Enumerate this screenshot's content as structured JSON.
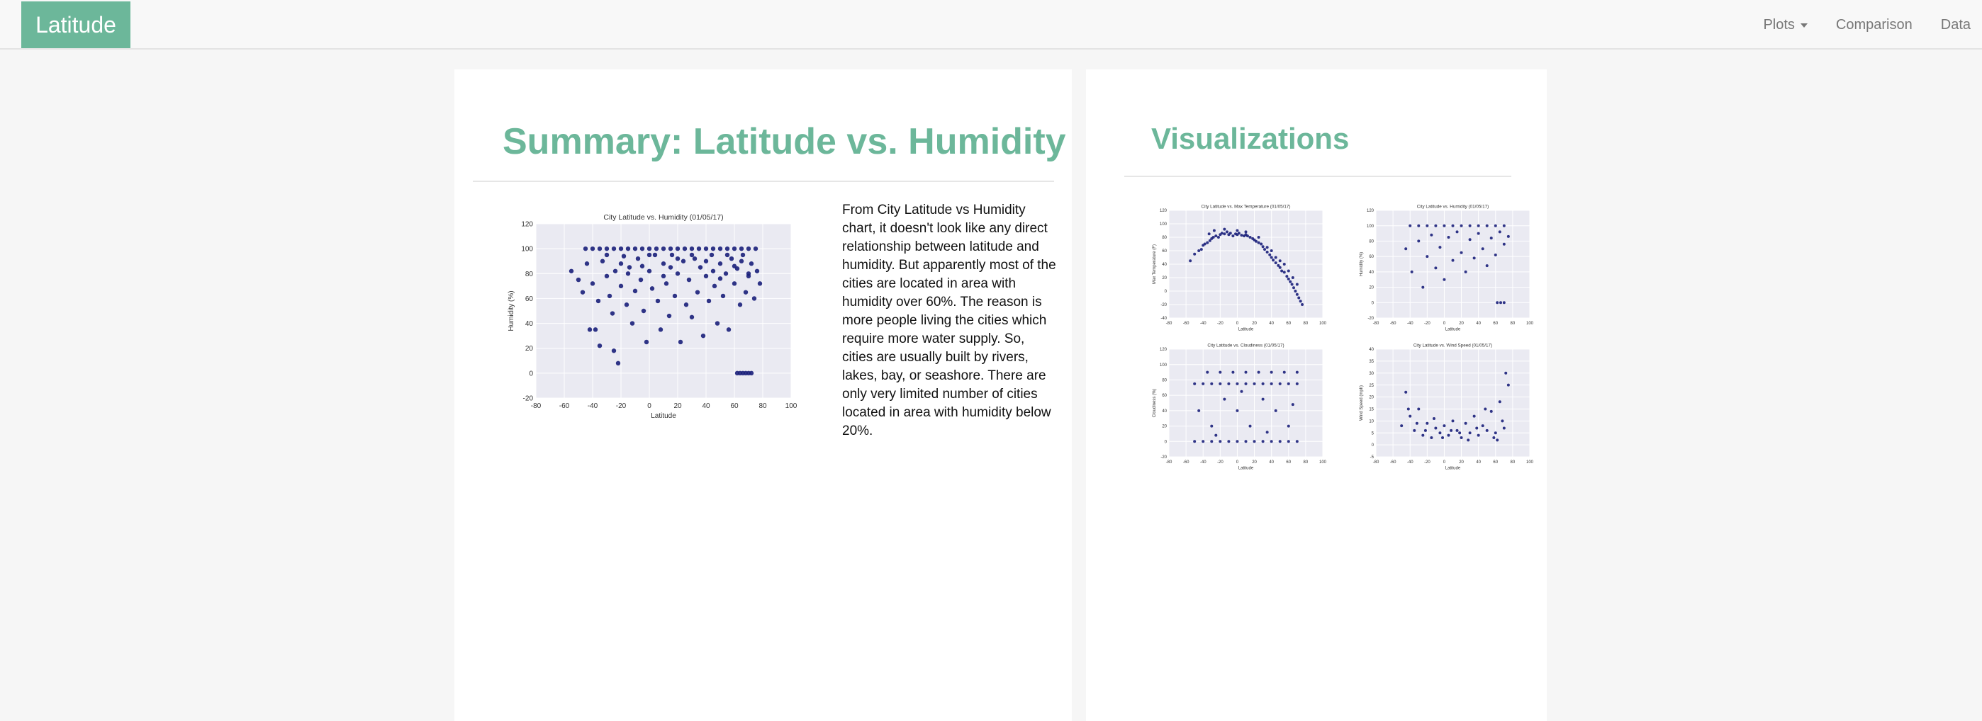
{
  "navbar": {
    "brand": "Latitude",
    "links": [
      {
        "label": "Plots",
        "has_caret": true
      },
      {
        "label": "Comparison",
        "has_caret": false
      },
      {
        "label": "Data",
        "has_caret": false
      }
    ]
  },
  "summary": {
    "title": "Summary: Latitude vs. Humidity",
    "text": "From City Latitude vs Humidity chart, it doesn't look like any direct relationship between latitude and humidity. But apparently most of the cities are located in area with humidity over 60%. The reason is more people living the cities which require more water supply. So, cities are usually built by rivers, lakes, bay, or seashore. There are only very limited number of cities located in area with humidity below 20%."
  },
  "visualizations": {
    "title": "Visualizations"
  },
  "colors": {
    "accent": "#6cb79a",
    "plot_bg": "#eaeaf2",
    "marker": "#1a1f7a"
  },
  "chart_data": [
    {
      "id": "main-humidity",
      "type": "scatter",
      "title": "City Latitude vs. Humidity (01/05/17)",
      "xlabel": "Latitude",
      "ylabel": "Humidity (%)",
      "xlim": [
        -80,
        100
      ],
      "ylim": [
        -20,
        120
      ],
      "xticks": [
        -80,
        -60,
        -40,
        -20,
        0,
        20,
        40,
        60,
        80,
        100
      ],
      "yticks": [
        -20,
        0,
        20,
        40,
        60,
        80,
        100,
        120
      ],
      "grid": true,
      "points": [
        [
          -45,
          100
        ],
        [
          -40,
          100
        ],
        [
          -35,
          100
        ],
        [
          -30,
          100
        ],
        [
          -25,
          100
        ],
        [
          -20,
          100
        ],
        [
          -15,
          100
        ],
        [
          -10,
          100
        ],
        [
          -5,
          100
        ],
        [
          0,
          100
        ],
        [
          5,
          100
        ],
        [
          10,
          100
        ],
        [
          15,
          100
        ],
        [
          20,
          100
        ],
        [
          25,
          100
        ],
        [
          30,
          100
        ],
        [
          35,
          100
        ],
        [
          40,
          100
        ],
        [
          45,
          100
        ],
        [
          50,
          100
        ],
        [
          55,
          100
        ],
        [
          60,
          100
        ],
        [
          65,
          100
        ],
        [
          70,
          100
        ],
        [
          75,
          100
        ],
        [
          -55,
          82
        ],
        [
          -50,
          75
        ],
        [
          -47,
          65
        ],
        [
          -44,
          88
        ],
        [
          -42,
          35
        ],
        [
          -40,
          72
        ],
        [
          -38,
          35
        ],
        [
          -36,
          58
        ],
        [
          -35,
          22
        ],
        [
          -33,
          90
        ],
        [
          -30,
          78
        ],
        [
          -28,
          62
        ],
        [
          -26,
          48
        ],
        [
          -25,
          18
        ],
        [
          -24,
          82
        ],
        [
          -22,
          8
        ],
        [
          -20,
          70
        ],
        [
          -18,
          94
        ],
        [
          -16,
          55
        ],
        [
          -14,
          85
        ],
        [
          -12,
          40
        ],
        [
          -10,
          66
        ],
        [
          -8,
          92
        ],
        [
          -6,
          75
        ],
        [
          -4,
          50
        ],
        [
          -2,
          25
        ],
        [
          0,
          82
        ],
        [
          2,
          68
        ],
        [
          4,
          95
        ],
        [
          6,
          58
        ],
        [
          8,
          35
        ],
        [
          10,
          88
        ],
        [
          12,
          72
        ],
        [
          14,
          46
        ],
        [
          16,
          95
        ],
        [
          18,
          62
        ],
        [
          20,
          80
        ],
        [
          22,
          25
        ],
        [
          24,
          90
        ],
        [
          26,
          55
        ],
        [
          28,
          75
        ],
        [
          30,
          45
        ],
        [
          32,
          92
        ],
        [
          34,
          65
        ],
        [
          36,
          85
        ],
        [
          38,
          30
        ],
        [
          40,
          78
        ],
        [
          42,
          58
        ],
        [
          44,
          95
        ],
        [
          46,
          70
        ],
        [
          48,
          40
        ],
        [
          50,
          88
        ],
        [
          52,
          62
        ],
        [
          54,
          80
        ],
        [
          56,
          35
        ],
        [
          58,
          92
        ],
        [
          60,
          72
        ],
        [
          62,
          84
        ],
        [
          64,
          55
        ],
        [
          66,
          95
        ],
        [
          68,
          65
        ],
        [
          70,
          78
        ],
        [
          72,
          88
        ],
        [
          74,
          60
        ],
        [
          76,
          82
        ],
        [
          78,
          72
        ],
        [
          -30,
          95
        ],
        [
          -15,
          80
        ],
        [
          0,
          95
        ],
        [
          15,
          85
        ],
        [
          30,
          95
        ],
        [
          45,
          82
        ],
        [
          55,
          95
        ],
        [
          65,
          90
        ],
        [
          70,
          80
        ],
        [
          60,
          86
        ],
        [
          50,
          76
        ],
        [
          40,
          90
        ],
        [
          20,
          92
        ],
        [
          10,
          78
        ],
        [
          -5,
          86
        ],
        [
          -20,
          88
        ],
        [
          62,
          0
        ],
        [
          64,
          0
        ],
        [
          66,
          0
        ],
        [
          68,
          0
        ],
        [
          70,
          0
        ],
        [
          72,
          0
        ]
      ]
    },
    {
      "id": "viz-temperature",
      "type": "scatter",
      "title": "City Latitude vs. Max Temperature (01/05/17)",
      "xlabel": "Latitude",
      "ylabel": "Max Temperature (F)",
      "xlim": [
        -80,
        100
      ],
      "ylim": [
        -40,
        120
      ],
      "xticks": [
        -80,
        -60,
        -40,
        -20,
        0,
        20,
        40,
        60,
        80,
        100
      ],
      "yticks": [
        -40,
        -20,
        0,
        20,
        40,
        60,
        80,
        100,
        120
      ],
      "grid": true,
      "points": [
        [
          -55,
          45
        ],
        [
          -50,
          55
        ],
        [
          -45,
          60
        ],
        [
          -42,
          62
        ],
        [
          -40,
          68
        ],
        [
          -38,
          70
        ],
        [
          -35,
          72
        ],
        [
          -32,
          75
        ],
        [
          -30,
          78
        ],
        [
          -28,
          80
        ],
        [
          -25,
          82
        ],
        [
          -22,
          80
        ],
        [
          -20,
          84
        ],
        [
          -18,
          86
        ],
        [
          -15,
          85
        ],
        [
          -12,
          88
        ],
        [
          -10,
          84
        ],
        [
          -8,
          86
        ],
        [
          -5,
          82
        ],
        [
          -2,
          85
        ],
        [
          0,
          84
        ],
        [
          2,
          86
        ],
        [
          5,
          83
        ],
        [
          8,
          82
        ],
        [
          10,
          84
        ],
        [
          12,
          82
        ],
        [
          15,
          80
        ],
        [
          18,
          78
        ],
        [
          20,
          76
        ],
        [
          22,
          74
        ],
        [
          25,
          72
        ],
        [
          28,
          70
        ],
        [
          30,
          66
        ],
        [
          32,
          62
        ],
        [
          35,
          58
        ],
        [
          38,
          54
        ],
        [
          40,
          50
        ],
        [
          42,
          46
        ],
        [
          45,
          42
        ],
        [
          48,
          38
        ],
        [
          50,
          35
        ],
        [
          52,
          30
        ],
        [
          55,
          28
        ],
        [
          58,
          22
        ],
        [
          60,
          18
        ],
        [
          62,
          14
        ],
        [
          64,
          10
        ],
        [
          66,
          5
        ],
        [
          68,
          0
        ],
        [
          70,
          -5
        ],
        [
          72,
          -10
        ],
        [
          74,
          -15
        ],
        [
          76,
          -20
        ],
        [
          -33,
          85
        ],
        [
          -27,
          90
        ],
        [
          -15,
          92
        ],
        [
          0,
          90
        ],
        [
          10,
          88
        ],
        [
          25,
          80
        ],
        [
          40,
          60
        ],
        [
          55,
          40
        ],
        [
          60,
          30
        ],
        [
          65,
          20
        ],
        [
          70,
          10
        ],
        [
          50,
          45
        ],
        [
          45,
          50
        ],
        [
          35,
          65
        ]
      ]
    },
    {
      "id": "viz-humidity",
      "type": "scatter",
      "title": "City Latitude vs. Humidity (01/05/17)",
      "xlabel": "Latitude",
      "ylabel": "Humidity (%)",
      "xlim": [
        -80,
        100
      ],
      "ylim": [
        -20,
        120
      ],
      "xticks": [
        -80,
        -60,
        -40,
        -20,
        0,
        20,
        40,
        60,
        80,
        100
      ],
      "yticks": [
        -20,
        0,
        20,
        40,
        60,
        80,
        100,
        120
      ],
      "grid": true,
      "points": [
        [
          -40,
          100
        ],
        [
          -30,
          100
        ],
        [
          -20,
          100
        ],
        [
          -10,
          100
        ],
        [
          0,
          100
        ],
        [
          10,
          100
        ],
        [
          20,
          100
        ],
        [
          30,
          100
        ],
        [
          40,
          100
        ],
        [
          50,
          100
        ],
        [
          60,
          100
        ],
        [
          70,
          100
        ],
        [
          -45,
          70
        ],
        [
          -38,
          40
        ],
        [
          -30,
          80
        ],
        [
          -25,
          20
        ],
        [
          -20,
          60
        ],
        [
          -15,
          88
        ],
        [
          -10,
          45
        ],
        [
          -5,
          72
        ],
        [
          0,
          30
        ],
        [
          5,
          85
        ],
        [
          10,
          55
        ],
        [
          15,
          92
        ],
        [
          20,
          65
        ],
        [
          25,
          40
        ],
        [
          30,
          82
        ],
        [
          35,
          58
        ],
        [
          40,
          90
        ],
        [
          45,
          70
        ],
        [
          50,
          48
        ],
        [
          55,
          84
        ],
        [
          60,
          62
        ],
        [
          65,
          92
        ],
        [
          70,
          76
        ],
        [
          75,
          86
        ],
        [
          62,
          0
        ],
        [
          66,
          0
        ],
        [
          70,
          0
        ]
      ]
    },
    {
      "id": "viz-cloudiness",
      "type": "scatter",
      "title": "City Latitude vs. Cloudiness (01/05/17)",
      "xlabel": "Latitude",
      "ylabel": "Cloudiness (%)",
      "xlim": [
        -80,
        100
      ],
      "ylim": [
        -20,
        120
      ],
      "xticks": [
        -80,
        -60,
        -40,
        -20,
        0,
        20,
        40,
        60,
        80,
        100
      ],
      "yticks": [
        -20,
        0,
        20,
        40,
        60,
        80,
        100,
        120
      ],
      "grid": true,
      "points": [
        [
          -50,
          0
        ],
        [
          -40,
          0
        ],
        [
          -30,
          0
        ],
        [
          -20,
          0
        ],
        [
          -10,
          0
        ],
        [
          0,
          0
        ],
        [
          10,
          0
        ],
        [
          20,
          0
        ],
        [
          30,
          0
        ],
        [
          40,
          0
        ],
        [
          50,
          0
        ],
        [
          60,
          0
        ],
        [
          70,
          0
        ],
        [
          -50,
          75
        ],
        [
          -40,
          75
        ],
        [
          -30,
          75
        ],
        [
          -20,
          75
        ],
        [
          -10,
          75
        ],
        [
          0,
          75
        ],
        [
          10,
          75
        ],
        [
          20,
          75
        ],
        [
          30,
          75
        ],
        [
          40,
          75
        ],
        [
          50,
          75
        ],
        [
          60,
          75
        ],
        [
          70,
          75
        ],
        [
          -35,
          90
        ],
        [
          -20,
          90
        ],
        [
          -5,
          90
        ],
        [
          10,
          90
        ],
        [
          25,
          90
        ],
        [
          40,
          90
        ],
        [
          55,
          90
        ],
        [
          70,
          90
        ],
        [
          -45,
          40
        ],
        [
          -30,
          20
        ],
        [
          -15,
          55
        ],
        [
          0,
          40
        ],
        [
          15,
          20
        ],
        [
          30,
          55
        ],
        [
          45,
          40
        ],
        [
          60,
          20
        ],
        [
          -25,
          8
        ],
        [
          5,
          65
        ],
        [
          35,
          12
        ],
        [
          65,
          48
        ]
      ]
    },
    {
      "id": "viz-wind",
      "type": "scatter",
      "title": "City Latitude vs. Wind Speed (01/05/17)",
      "xlabel": "Latitude",
      "ylabel": "Wind Speed (mph)",
      "xlim": [
        -80,
        100
      ],
      "ylim": [
        -5,
        40
      ],
      "xticks": [
        -80,
        -60,
        -40,
        -20,
        0,
        20,
        40,
        60,
        80,
        100
      ],
      "yticks": [
        -5,
        0,
        5,
        10,
        15,
        20,
        25,
        30,
        35,
        40
      ],
      "grid": true,
      "points": [
        [
          -50,
          8
        ],
        [
          -45,
          22
        ],
        [
          -40,
          12
        ],
        [
          -35,
          6
        ],
        [
          -30,
          15
        ],
        [
          -25,
          4
        ],
        [
          -20,
          9
        ],
        [
          -15,
          3
        ],
        [
          -10,
          7
        ],
        [
          -5,
          5
        ],
        [
          0,
          8
        ],
        [
          5,
          4
        ],
        [
          10,
          10
        ],
        [
          15,
          6
        ],
        [
          20,
          3
        ],
        [
          25,
          9
        ],
        [
          30,
          5
        ],
        [
          35,
          12
        ],
        [
          40,
          4
        ],
        [
          45,
          8
        ],
        [
          50,
          6
        ],
        [
          55,
          14
        ],
        [
          60,
          5
        ],
        [
          65,
          18
        ],
        [
          70,
          7
        ],
        [
          72,
          30
        ],
        [
          75,
          25
        ],
        [
          -42,
          15
        ],
        [
          -22,
          6
        ],
        [
          -2,
          3
        ],
        [
          18,
          5
        ],
        [
          38,
          7
        ],
        [
          58,
          3
        ],
        [
          68,
          10
        ],
        [
          62,
          2
        ],
        [
          48,
          15
        ],
        [
          28,
          2
        ],
        [
          8,
          6
        ],
        [
          -12,
          11
        ],
        [
          -32,
          9
        ]
      ]
    }
  ]
}
